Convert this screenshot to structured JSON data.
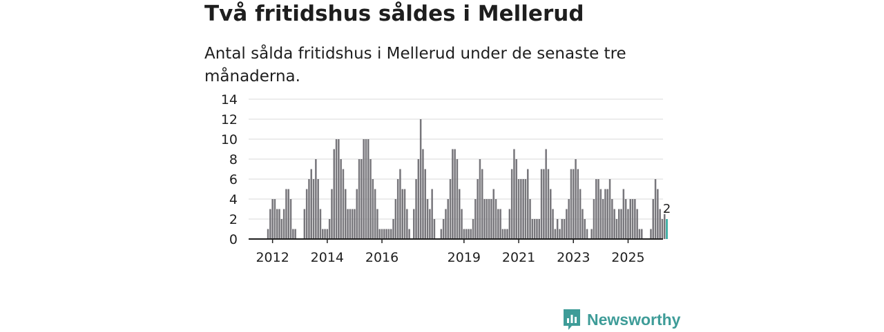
{
  "title": "Två fritidshus såldes i Mellerud",
  "subtitle": "Antal sålda fritidshus i Mellerud under de senaste tre månaderna.",
  "brand": "Newsworthy",
  "colors": {
    "bar": "#77767b",
    "highlight": "#26a69a",
    "grid": "#d9d9d9",
    "axis": "#1e1e1e",
    "brand": "#3e9c98"
  },
  "chart_data": {
    "type": "bar",
    "title": "Antal sålda fritidshus i Mellerud under de senaste tre månaderna.",
    "xlabel": "",
    "ylabel": "",
    "ylim": [
      0,
      14
    ],
    "yticks": [
      0,
      2,
      4,
      6,
      8,
      10,
      12,
      14
    ],
    "x_tick_labels": [
      {
        "label": "2012",
        "index": 2
      },
      {
        "label": "2014",
        "index": 26
      },
      {
        "label": "2016",
        "index": 50
      },
      {
        "label": "2019",
        "index": 86
      },
      {
        "label": "2021",
        "index": 110
      },
      {
        "label": "2023",
        "index": 134
      },
      {
        "label": "2025",
        "index": 158
      }
    ],
    "period_start": "2011-10",
    "period_unit": "rolling 3-month period, monthly step",
    "values": [
      1,
      3,
      4,
      4,
      3,
      3,
      2,
      3,
      5,
      5,
      4,
      1,
      1,
      0,
      0,
      0,
      3,
      5,
      6,
      7,
      6,
      8,
      6,
      3,
      1,
      1,
      1,
      2,
      5,
      9,
      10,
      10,
      8,
      7,
      5,
      3,
      3,
      3,
      3,
      5,
      8,
      8,
      10,
      10,
      10,
      8,
      6,
      5,
      3,
      1,
      1,
      1,
      1,
      1,
      1,
      2,
      4,
      6,
      7,
      5,
      5,
      3,
      1,
      0,
      3,
      6,
      8,
      12,
      9,
      7,
      4,
      3,
      5,
      2,
      0,
      0,
      1,
      2,
      3,
      4,
      6,
      9,
      9,
      8,
      5,
      3,
      1,
      1,
      1,
      1,
      2,
      4,
      6,
      8,
      7,
      4,
      4,
      4,
      4,
      5,
      4,
      3,
      3,
      1,
      1,
      1,
      3,
      7,
      9,
      8,
      6,
      6,
      6,
      6,
      7,
      4,
      2,
      2,
      2,
      2,
      7,
      7,
      9,
      7,
      5,
      3,
      1,
      2,
      1,
      2,
      2,
      3,
      4,
      7,
      7,
      8,
      7,
      5,
      3,
      2,
      1,
      0,
      1,
      4,
      6,
      6,
      5,
      4,
      5,
      5,
      6,
      4,
      3,
      2,
      3,
      3,
      5,
      4,
      3,
      4,
      4,
      4,
      3,
      1,
      1,
      0,
      0,
      0,
      1,
      4,
      6,
      5,
      3,
      2,
      2.5,
      2
    ],
    "highlight_last": true,
    "last_value_label": "2"
  }
}
